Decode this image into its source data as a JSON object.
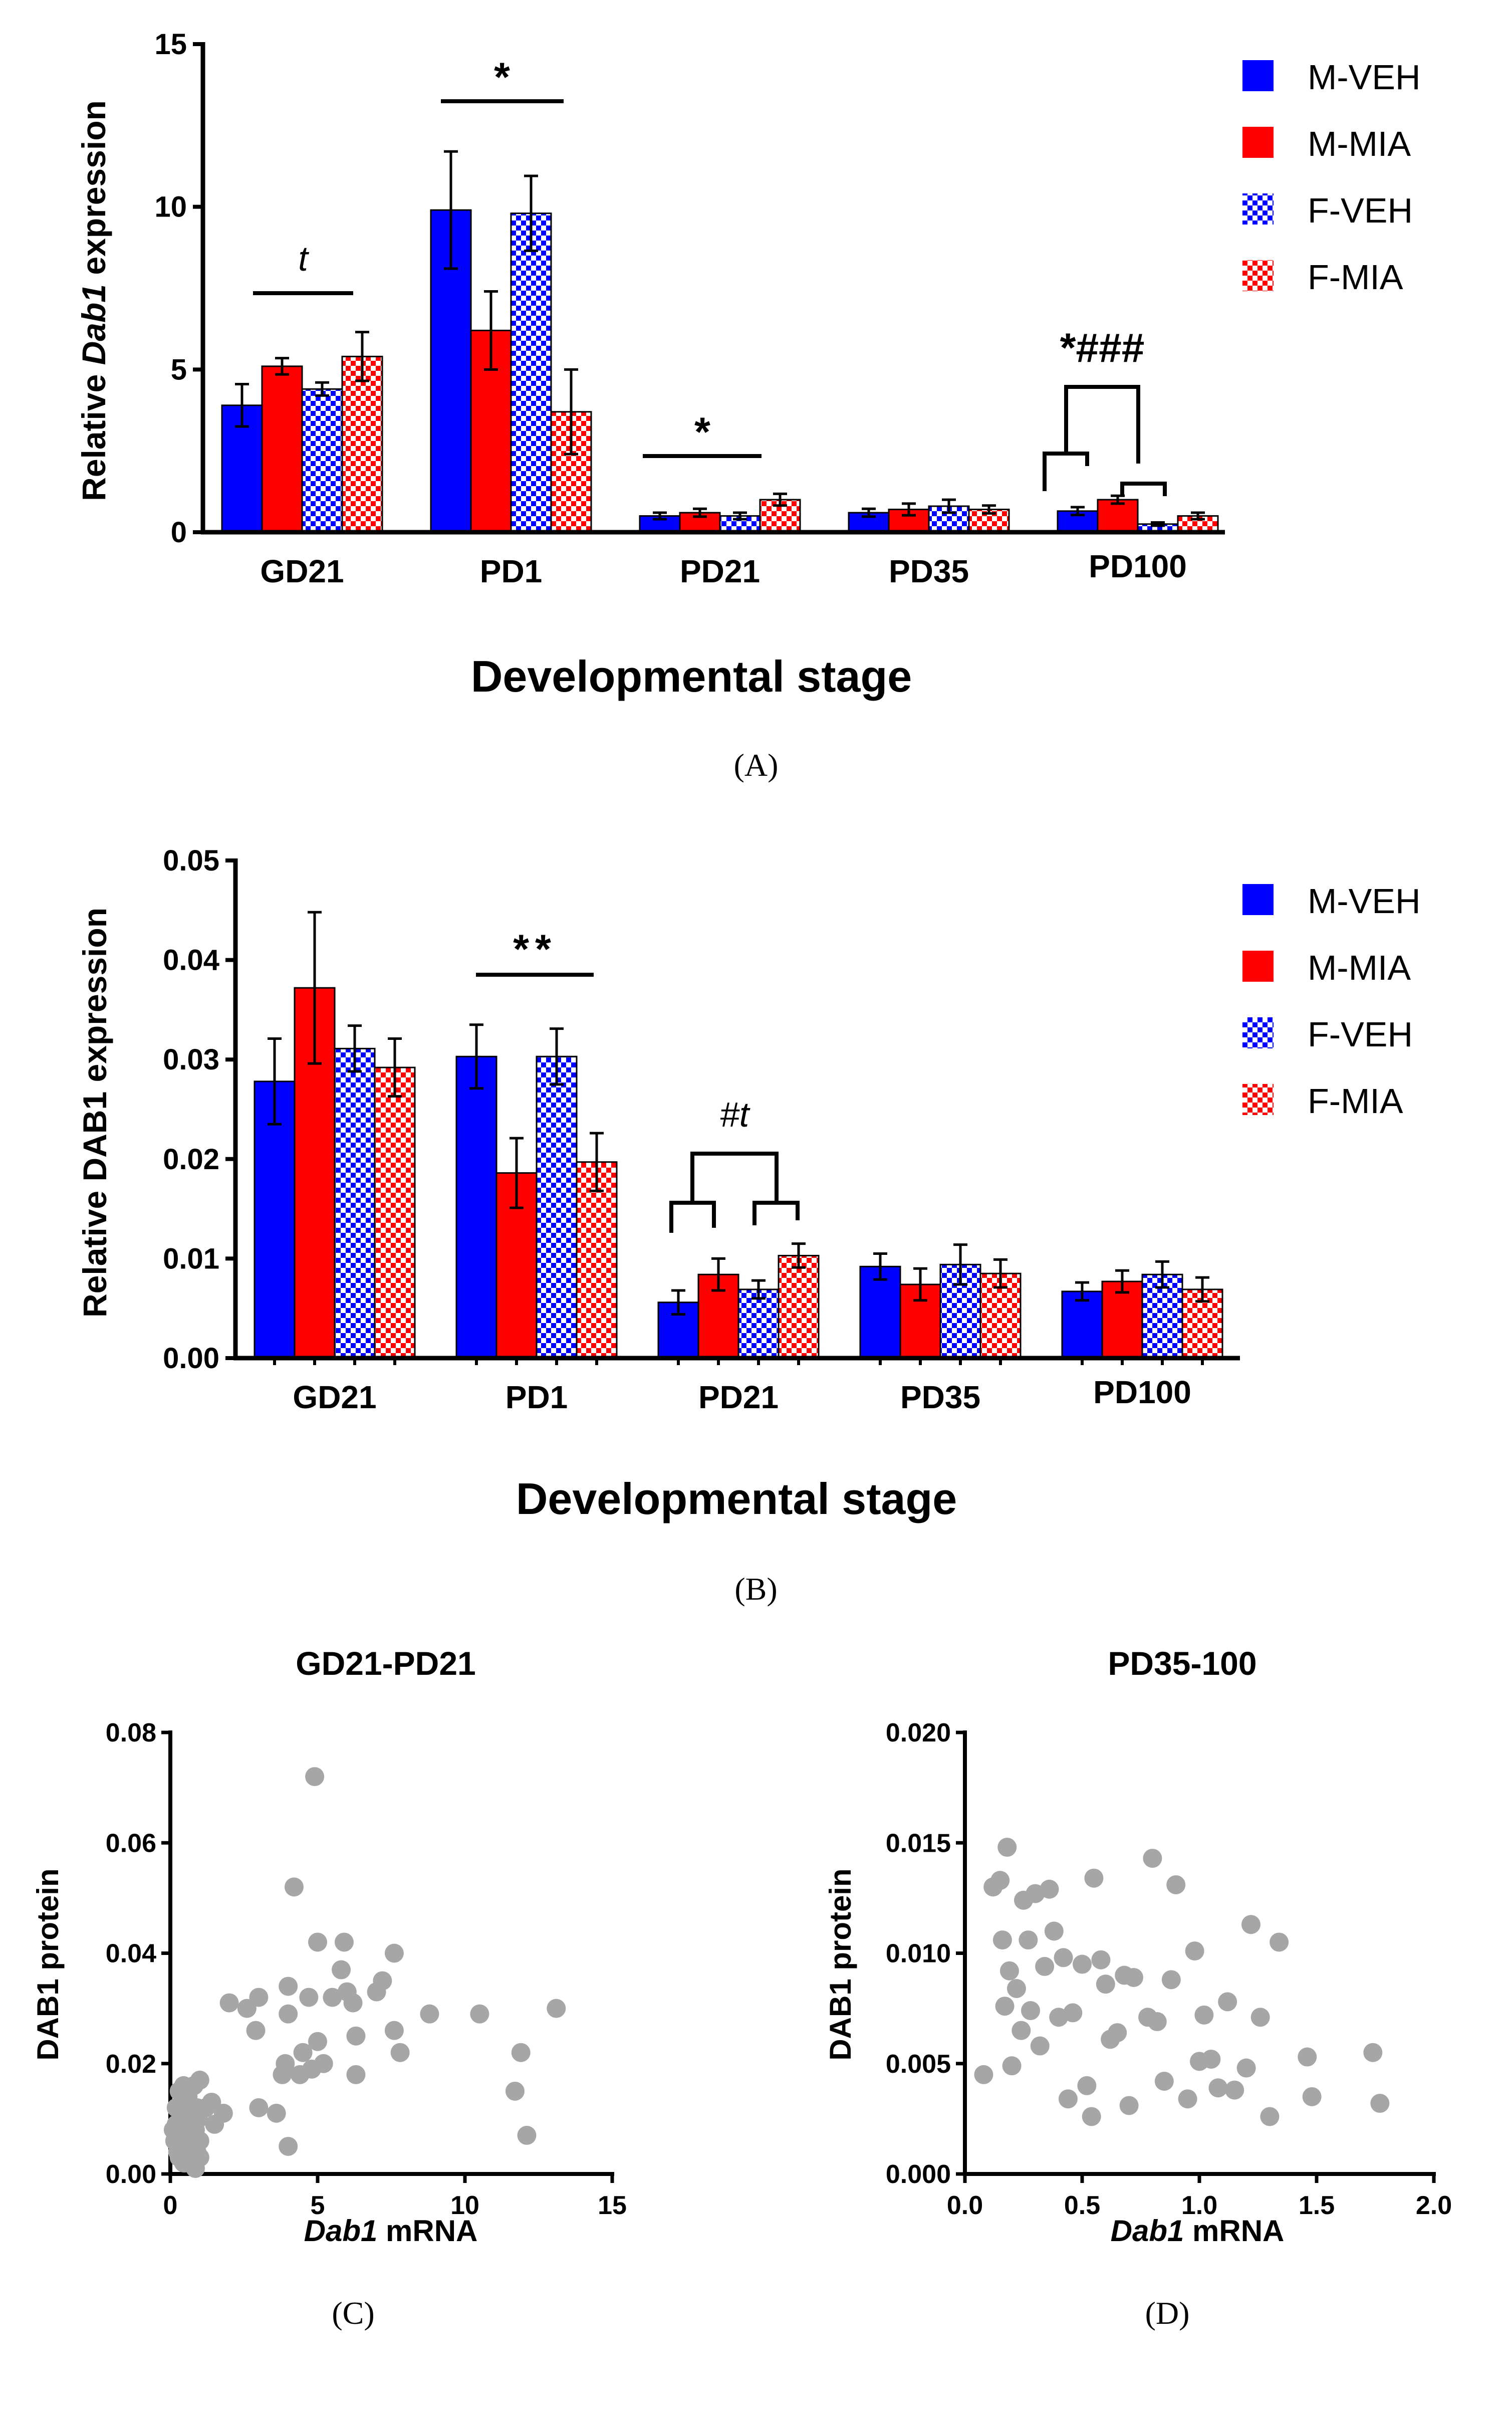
{
  "colors": {
    "m_veh": "#0000ff",
    "m_mia": "#ff0000",
    "f_veh": "#0000ff",
    "f_mia": "#ff0000",
    "scatter": "#a6a6a6"
  },
  "panel_labels": {
    "a": "(A)",
    "b": "(B)",
    "c": "(C)",
    "d": "(D)"
  },
  "chart_data": [
    {
      "id": "A",
      "type": "bar",
      "title": "",
      "xlabel": "Developmental stage",
      "ylabel_prefix": "Relative ",
      "ylabel_italic": "Dab1",
      "ylabel_suffix": " expression",
      "ylim": [
        0,
        15
      ],
      "yticks": [
        "0",
        "5",
        "10",
        "15"
      ],
      "categories": [
        "GD21",
        "PD1",
        "PD21",
        "PD35",
        "PD100"
      ],
      "legend": [
        "M-VEH",
        "M-MIA",
        "F-VEH",
        "F-MIA"
      ],
      "series": [
        {
          "name": "M-VEH",
          "values": [
            3.9,
            9.9,
            0.5,
            0.6,
            0.65
          ],
          "errors": [
            0.65,
            1.8,
            0.1,
            0.12,
            0.12
          ]
        },
        {
          "name": "M-MIA",
          "values": [
            5.1,
            6.2,
            0.6,
            0.7,
            1.0
          ],
          "errors": [
            0.25,
            1.2,
            0.12,
            0.18,
            0.12
          ]
        },
        {
          "name": "F-VEH",
          "values": [
            4.4,
            9.8,
            0.5,
            0.8,
            0.25
          ],
          "errors": [
            0.2,
            1.15,
            0.1,
            0.2,
            0.05
          ]
        },
        {
          "name": "F-MIA",
          "values": [
            5.4,
            3.7,
            1.0,
            0.7,
            0.5
          ],
          "errors": [
            0.75,
            1.3,
            0.18,
            0.12,
            0.1
          ]
        }
      ],
      "annotations": [
        "t",
        "*",
        "*",
        "*###"
      ]
    },
    {
      "id": "B",
      "type": "bar",
      "title": "",
      "xlabel": "Developmental stage",
      "ylabel": "Relative DAB1 expression",
      "ylim": [
        0,
        0.05
      ],
      "yticks": [
        "0.00",
        "0.01",
        "0.02",
        "0.03",
        "0.04",
        "0.05"
      ],
      "categories": [
        "GD21",
        "PD1",
        "PD21",
        "PD35",
        "PD100"
      ],
      "legend": [
        "M-VEH",
        "M-MIA",
        "F-VEH",
        "F-MIA"
      ],
      "series": [
        {
          "name": "M-VEH",
          "values": [
            0.0278,
            0.0303,
            0.0056,
            0.0092,
            0.0067
          ],
          "errors": [
            0.0043,
            0.0032,
            0.0012,
            0.0013,
            0.0009
          ]
        },
        {
          "name": "M-MIA",
          "values": [
            0.0372,
            0.0186,
            0.0084,
            0.0074,
            0.0077
          ],
          "errors": [
            0.0076,
            0.0035,
            0.0016,
            0.0016,
            0.0011
          ]
        },
        {
          "name": "F-VEH",
          "values": [
            0.0311,
            0.0303,
            0.0069,
            0.0094,
            0.0084
          ],
          "errors": [
            0.0023,
            0.0028,
            0.0009,
            0.002,
            0.0013
          ]
        },
        {
          "name": "F-MIA",
          "values": [
            0.0292,
            0.0197,
            0.0103,
            0.0085,
            0.0069
          ],
          "errors": [
            0.0029,
            0.0029,
            0.0012,
            0.0014,
            0.0012
          ]
        }
      ],
      "annotations": [
        "**",
        "#t"
      ]
    },
    {
      "id": "C",
      "type": "scatter",
      "title": "GD21-PD21",
      "xlabel_italic": "Dab1",
      "xlabel_suffix": " mRNA",
      "ylabel": "DAB1 protein",
      "xlim": [
        0,
        15
      ],
      "ylim": [
        0,
        0.08
      ],
      "xticks": [
        "0",
        "5",
        "10",
        "15"
      ],
      "yticks": [
        "0.00",
        "0.02",
        "0.04",
        "0.06",
        "0.08"
      ],
      "points": [
        [
          0.1,
          0.008
        ],
        [
          0.2,
          0.012
        ],
        [
          0.25,
          0.004
        ],
        [
          0.3,
          0.015
        ],
        [
          0.35,
          0.007
        ],
        [
          0.4,
          0.01
        ],
        [
          0.45,
          0.002
        ],
        [
          0.5,
          0.013
        ],
        [
          0.55,
          0.006
        ],
        [
          0.6,
          0.009
        ],
        [
          0.65,
          0.003
        ],
        [
          0.7,
          0.011
        ],
        [
          0.75,
          0.005
        ],
        [
          0.8,
          0.016
        ],
        [
          0.85,
          0.008
        ],
        [
          0.9,
          0.004
        ],
        [
          0.95,
          0.01
        ],
        [
          1.0,
          0.006
        ],
        [
          0.3,
          0.003
        ],
        [
          0.6,
          0.014
        ],
        [
          0.2,
          0.009
        ],
        [
          0.5,
          0.002
        ],
        [
          0.8,
          0.007
        ],
        [
          1.0,
          0.003
        ],
        [
          0.15,
          0.006
        ],
        [
          0.4,
          0.005
        ],
        [
          0.7,
          0.002
        ],
        [
          1.0,
          0.017
        ],
        [
          0.9,
          0.012
        ],
        [
          0.45,
          0.016
        ],
        [
          0.3,
          0.008
        ],
        [
          0.65,
          0.009
        ],
        [
          1.2,
          0.012
        ],
        [
          1.5,
          0.009
        ],
        [
          1.8,
          0.011
        ],
        [
          1.4,
          0.013
        ],
        [
          0.85,
          0.001
        ],
        [
          0.55,
          0.01
        ],
        [
          2.0,
          0.031
        ],
        [
          2.6,
          0.03
        ],
        [
          2.9,
          0.026
        ],
        [
          3.0,
          0.012
        ],
        [
          3.0,
          0.032
        ],
        [
          3.6,
          0.011
        ],
        [
          3.8,
          0.018
        ],
        [
          3.9,
          0.02
        ],
        [
          4.0,
          0.029
        ],
        [
          4.0,
          0.034
        ],
        [
          4.0,
          0.005
        ],
        [
          4.2,
          0.052
        ],
        [
          4.4,
          0.018
        ],
        [
          4.5,
          0.022
        ],
        [
          4.7,
          0.032
        ],
        [
          4.8,
          0.019
        ],
        [
          4.9,
          0.072
        ],
        [
          5.0,
          0.042
        ],
        [
          5.0,
          0.024
        ],
        [
          5.2,
          0.02
        ],
        [
          5.5,
          0.032
        ],
        [
          5.8,
          0.037
        ],
        [
          5.9,
          0.042
        ],
        [
          6.0,
          0.033
        ],
        [
          6.2,
          0.031
        ],
        [
          6.3,
          0.025
        ],
        [
          6.3,
          0.018
        ],
        [
          7.0,
          0.033
        ],
        [
          7.2,
          0.035
        ],
        [
          7.6,
          0.04
        ],
        [
          7.6,
          0.026
        ],
        [
          7.8,
          0.022
        ],
        [
          8.8,
          0.029
        ],
        [
          10.5,
          0.029
        ],
        [
          11.7,
          0.015
        ],
        [
          11.9,
          0.022
        ],
        [
          12.1,
          0.007
        ],
        [
          13.1,
          0.03
        ]
      ]
    },
    {
      "id": "D",
      "type": "scatter",
      "title": "PD35-100",
      "xlabel_italic": "Dab1",
      "xlabel_suffix": " mRNA",
      "ylabel": "DAB1 protein",
      "xlim": [
        0,
        2
      ],
      "ylim": [
        0,
        0.02
      ],
      "xticks": [
        "0.0",
        "0.5",
        "1.0",
        "1.5",
        "2.0"
      ],
      "yticks": [
        "0.000",
        "0.005",
        "0.010",
        "0.015",
        "0.020"
      ],
      "points": [
        [
          0.08,
          0.0045
        ],
        [
          0.12,
          0.013
        ],
        [
          0.15,
          0.0133
        ],
        [
          0.16,
          0.0106
        ],
        [
          0.17,
          0.0076
        ],
        [
          0.18,
          0.0148
        ],
        [
          0.19,
          0.0092
        ],
        [
          0.2,
          0.0049
        ],
        [
          0.22,
          0.0084
        ],
        [
          0.24,
          0.0065
        ],
        [
          0.25,
          0.0124
        ],
        [
          0.27,
          0.0106
        ],
        [
          0.28,
          0.0074
        ],
        [
          0.3,
          0.0127
        ],
        [
          0.32,
          0.0058
        ],
        [
          0.34,
          0.0094
        ],
        [
          0.36,
          0.0129
        ],
        [
          0.38,
          0.011
        ],
        [
          0.4,
          0.0071
        ],
        [
          0.42,
          0.0098
        ],
        [
          0.44,
          0.0034
        ],
        [
          0.46,
          0.0073
        ],
        [
          0.5,
          0.0095
        ],
        [
          0.52,
          0.004
        ],
        [
          0.54,
          0.0026
        ],
        [
          0.55,
          0.0134
        ],
        [
          0.58,
          0.0097
        ],
        [
          0.6,
          0.0086
        ],
        [
          0.62,
          0.0061
        ],
        [
          0.65,
          0.0064
        ],
        [
          0.68,
          0.009
        ],
        [
          0.7,
          0.0031
        ],
        [
          0.72,
          0.0089
        ],
        [
          0.78,
          0.0071
        ],
        [
          0.8,
          0.0143
        ],
        [
          0.82,
          0.0069
        ],
        [
          0.85,
          0.0042
        ],
        [
          0.88,
          0.0088
        ],
        [
          0.9,
          0.0131
        ],
        [
          0.95,
          0.0034
        ],
        [
          0.98,
          0.0101
        ],
        [
          1.0,
          0.0051
        ],
        [
          1.02,
          0.0072
        ],
        [
          1.05,
          0.0052
        ],
        [
          1.08,
          0.0039
        ],
        [
          1.12,
          0.0078
        ],
        [
          1.15,
          0.0038
        ],
        [
          1.2,
          0.0048
        ],
        [
          1.22,
          0.0113
        ],
        [
          1.26,
          0.0071
        ],
        [
          1.3,
          0.0026
        ],
        [
          1.34,
          0.0105
        ],
        [
          1.46,
          0.0053
        ],
        [
          1.48,
          0.0035
        ],
        [
          1.74,
          0.0055
        ],
        [
          1.77,
          0.0032
        ]
      ]
    }
  ]
}
